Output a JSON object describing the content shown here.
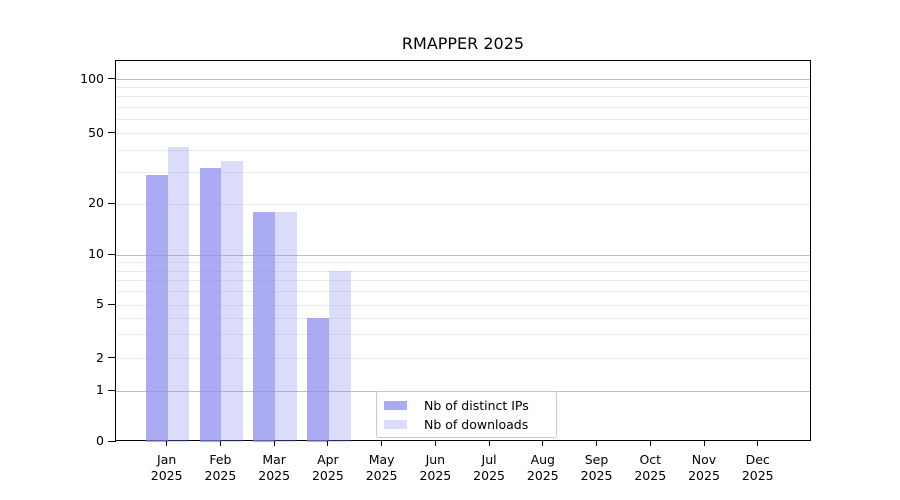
{
  "chart_data": {
    "type": "bar",
    "title": "RMAPPER 2025",
    "x_months": [
      "Jan",
      "Feb",
      "Mar",
      "Apr",
      "May",
      "Jun",
      "Jul",
      "Aug",
      "Sep",
      "Oct",
      "Nov",
      "Dec"
    ],
    "x_year": "2025",
    "series": [
      {
        "name": "Nb of distinct IPs",
        "color": "rgba(136,136,238,0.7)",
        "base_color": "#8888ee",
        "values": [
          29,
          32,
          18,
          4,
          0,
          0,
          0,
          0,
          0,
          0,
          0,
          0
        ]
      },
      {
        "name": "Nb of downloads",
        "color": "rgba(136,136,238,0.3)",
        "base_color": "#8888ee",
        "values": [
          42,
          35,
          18,
          8,
          0,
          0,
          0,
          0,
          0,
          0,
          0,
          0
        ]
      }
    ],
    "y_ticks": [
      100,
      50,
      20,
      10,
      5,
      2,
      1,
      0
    ],
    "y_major_gridlines": [
      1,
      10,
      100
    ],
    "y_minor_gridlines": [
      2,
      3,
      4,
      5,
      6,
      7,
      8,
      9,
      20,
      30,
      40,
      50,
      60,
      70,
      80,
      90
    ],
    "y_scale": "log above 1, linear 0-1",
    "ylim": [
      0,
      126
    ],
    "grid": true,
    "legend_position": "bottom-center",
    "colors": {
      "major_grid": "#bfbfbf",
      "minor_grid": "#ebebeb",
      "axis": "#000000",
      "legend_border": "#c9c9c9"
    }
  },
  "legend": {
    "items": [
      {
        "label": "Nb of distinct IPs"
      },
      {
        "label": "Nb of downloads"
      }
    ]
  }
}
